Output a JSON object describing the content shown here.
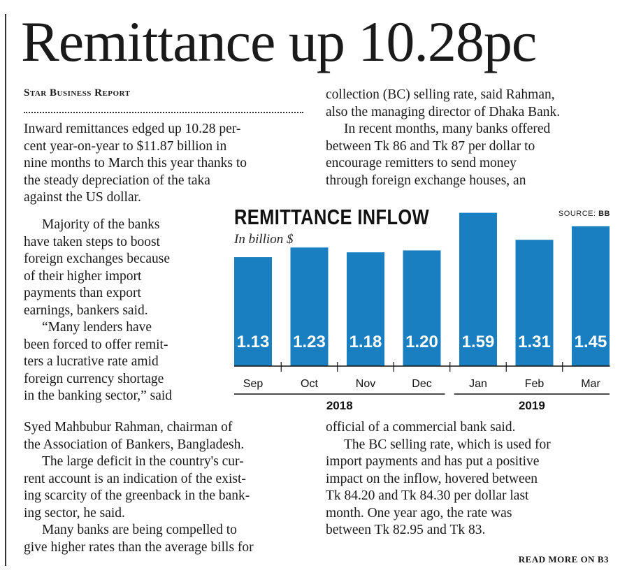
{
  "headline": "Remittance up 10.28pc",
  "byline": "Star Business Report",
  "col1_lines": [
    "Inward remittances edged up 10.28 per-",
    "cent year-on-year to $11.87 billion in",
    "nine months to March this year thanks to",
    "the steady depreciation of the taka",
    "against the US dollar."
  ],
  "col1_narrow_lines": [
    "Majority of the banks",
    "have taken steps to boost",
    "foreign exchanges because",
    "of their higher import",
    "payments than export",
    "earnings, bankers said.",
    "“Many lenders have",
    "been forced to offer remit-",
    "ters a lucrative rate amid",
    "foreign currency shortage",
    "in the banking sector,” said"
  ],
  "col1_bottom_lines": [
    "Syed Mahbubur Rahman, chairman of",
    "the Association of Bankers, Bangladesh.",
    "The large deficit in the country's cur-",
    "rent account is an indication of the exist-",
    "ing scarcity of the greenback in the bank-",
    "ing sector, he said.",
    "Many banks are being compelled to",
    "give higher rates than the average bills for"
  ],
  "col2_top_lines": [
    "collection (BC) selling rate, said Rahman,",
    "also the managing director of Dhaka Bank.",
    "In recent months, many banks offered",
    "between Tk 86 and Tk 87 per dollar to",
    "encourage remitters to send money",
    "through foreign exchange houses, an"
  ],
  "col2_bottom_lines": [
    "official of a commercial bank said.",
    "The BC selling rate, which is used for",
    "import payments and has put a positive",
    "impact on the inflow, hovered between",
    "Tk 84.20 and Tk 84.30 per dollar last",
    "month. One year ago, the rate was",
    "between Tk 82.95 and Tk 83."
  ],
  "read_more": "READ MORE ON B3",
  "chart_data": {
    "type": "bar",
    "title": "REMITTANCE INFLOW",
    "subtitle": "In billion $",
    "source_label": "SOURCE:",
    "source_value": "BB",
    "categories": [
      "Sep",
      "Oct",
      "Nov",
      "Dec",
      "Jan",
      "Feb",
      "Mar"
    ],
    "values": [
      1.13,
      1.23,
      1.18,
      1.2,
      1.59,
      1.31,
      1.45
    ],
    "value_labels": [
      "1.13",
      "1.23",
      "1.18",
      "1.20",
      "1.59",
      "1.31",
      "1.45"
    ],
    "year_groups": [
      {
        "label": "2018",
        "categories": [
          "Sep",
          "Oct",
          "Nov",
          "Dec"
        ]
      },
      {
        "label": "2019",
        "categories": [
          "Jan",
          "Feb",
          "Mar"
        ]
      }
    ],
    "bar_color": "#1a7fc1",
    "value_label_color": "#ffffff"
  }
}
